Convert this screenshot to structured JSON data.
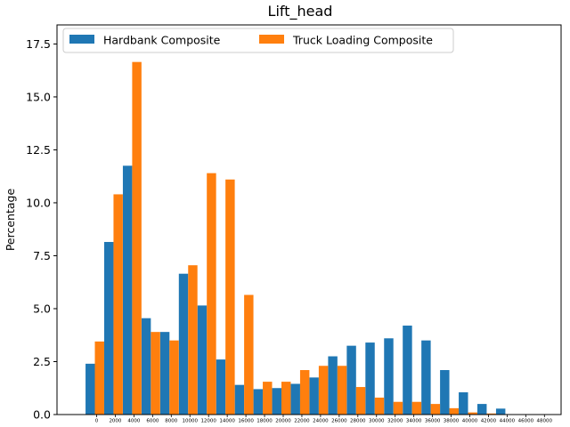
{
  "chart_data": {
    "type": "bar",
    "title": "Lift_head",
    "xlabel": "",
    "ylabel": "Percentage",
    "ylim": [
      0,
      18.4
    ],
    "yticks": [
      "0.0",
      "2.5",
      "5.0",
      "7.5",
      "10.0",
      "12.5",
      "15.0",
      "17.5"
    ],
    "ytick_values": [
      0,
      2.5,
      5,
      7.5,
      10,
      12.5,
      15,
      17.5
    ],
    "categories": [
      "0",
      "2000",
      "4000",
      "6000",
      "8000",
      "10000",
      "12000",
      "14000",
      "16000",
      "18000",
      "20000",
      "22000",
      "24000",
      "26000",
      "28000",
      "30000",
      "32000",
      "34000",
      "36000",
      "38000",
      "40000",
      "42000",
      "44000",
      "46000",
      "48000"
    ],
    "legend": {
      "placement": "top-left",
      "columns": 2
    },
    "grid": false,
    "series": [
      {
        "name": "Hardbank Composite",
        "color": "#1f77b4",
        "values": [
          2.4,
          8.15,
          11.75,
          4.55,
          3.9,
          6.65,
          5.15,
          2.6,
          1.4,
          1.2,
          1.25,
          1.45,
          1.75,
          2.75,
          3.25,
          3.4,
          3.6,
          4.2,
          3.5,
          2.1,
          1.05,
          0.5,
          0.28,
          0,
          0
        ]
      },
      {
        "name": "Truck Loading Composite",
        "color": "#ff7f0e",
        "values": [
          3.45,
          10.4,
          16.65,
          3.9,
          3.5,
          7.05,
          11.4,
          11.1,
          5.65,
          1.55,
          1.55,
          2.1,
          2.3,
          2.3,
          1.3,
          0.8,
          0.6,
          0.6,
          0.5,
          0.3,
          0.1,
          0.05,
          0,
          0,
          0
        ]
      }
    ]
  }
}
